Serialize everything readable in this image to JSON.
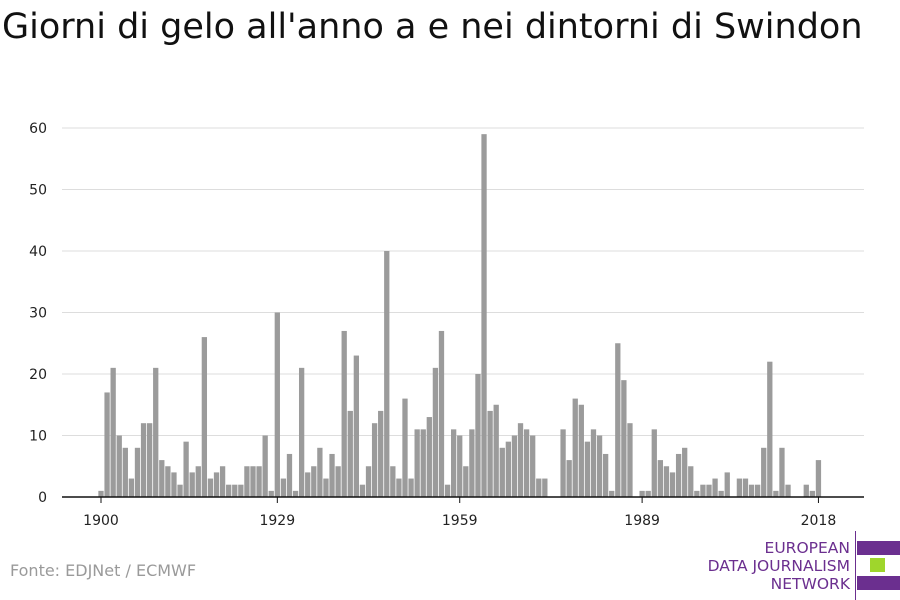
{
  "title": "Giorni di gelo all'anno a e nei dintorni di Swindon",
  "source": "Fonte: EDJNet / ECMWF",
  "logo": {
    "line1": "EUROPEAN",
    "line2": "DATA JOURNALISM",
    "line3": "NETWORK",
    "color_purple": "#6b2f8f",
    "color_green": "#9fd62c"
  },
  "colors": {
    "bar": "#9b9b9b",
    "grid": "#dddddd",
    "axis": "#111111"
  },
  "chart_data": {
    "type": "bar",
    "title": "Giorni di gelo all'anno a e nei dintorni di Swindon",
    "xlabel": "",
    "ylabel": "",
    "xlim": [
      1900,
      2018
    ],
    "ylim": [
      0,
      60
    ],
    "x_ticks": [
      1900,
      1929,
      1959,
      1989,
      2018
    ],
    "y_ticks": [
      0,
      10,
      20,
      30,
      40,
      50,
      60
    ],
    "grid": true,
    "x": [
      1900,
      1901,
      1902,
      1903,
      1904,
      1905,
      1906,
      1907,
      1908,
      1909,
      1910,
      1911,
      1912,
      1913,
      1914,
      1915,
      1916,
      1917,
      1918,
      1919,
      1920,
      1921,
      1922,
      1923,
      1924,
      1925,
      1926,
      1927,
      1928,
      1929,
      1930,
      1931,
      1932,
      1933,
      1934,
      1935,
      1936,
      1937,
      1938,
      1939,
      1940,
      1941,
      1942,
      1943,
      1944,
      1945,
      1946,
      1947,
      1948,
      1949,
      1950,
      1951,
      1952,
      1953,
      1954,
      1955,
      1956,
      1957,
      1958,
      1959,
      1960,
      1961,
      1962,
      1963,
      1964,
      1965,
      1966,
      1967,
      1968,
      1969,
      1970,
      1971,
      1972,
      1973,
      1974,
      1975,
      1976,
      1977,
      1978,
      1979,
      1980,
      1981,
      1982,
      1983,
      1984,
      1985,
      1986,
      1987,
      1988,
      1989,
      1990,
      1991,
      1992,
      1993,
      1994,
      1995,
      1996,
      1997,
      1998,
      1999,
      2000,
      2001,
      2002,
      2003,
      2004,
      2005,
      2006,
      2007,
      2008,
      2009,
      2010,
      2011,
      2012,
      2013,
      2014,
      2015,
      2016,
      2017,
      2018
    ],
    "values": [
      1,
      17,
      21,
      10,
      8,
      3,
      8,
      12,
      12,
      21,
      6,
      5,
      4,
      2,
      9,
      4,
      5,
      26,
      3,
      4,
      5,
      2,
      2,
      2,
      5,
      5,
      5,
      10,
      1,
      30,
      3,
      7,
      1,
      21,
      4,
      5,
      8,
      3,
      7,
      5,
      27,
      14,
      23,
      2,
      5,
      12,
      14,
      40,
      5,
      3,
      16,
      3,
      11,
      11,
      13,
      21,
      27,
      2,
      11,
      10,
      5,
      11,
      20,
      59,
      14,
      15,
      8,
      9,
      10,
      12,
      11,
      10,
      3,
      3,
      0,
      0,
      11,
      6,
      16,
      15,
      9,
      11,
      10,
      7,
      1,
      25,
      19,
      12,
      0,
      1,
      1,
      11,
      6,
      5,
      4,
      7,
      8,
      5,
      1,
      2,
      2,
      3,
      1,
      4,
      0,
      3,
      3,
      2,
      2,
      8,
      22,
      1,
      8,
      2,
      0,
      0,
      2,
      1,
      6
    ]
  }
}
